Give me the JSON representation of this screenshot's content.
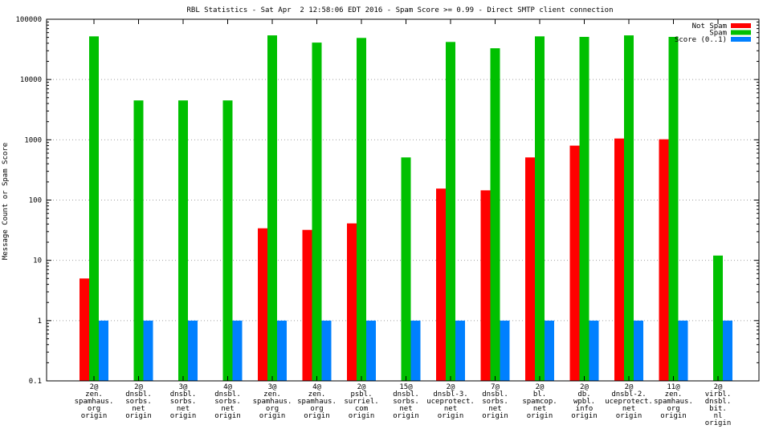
{
  "chart_data": {
    "type": "bar",
    "title": "RBL Statistics - Sat Apr  2 12:58:06 EDT 2016 - Spam Score >= 0.99 - Direct SMTP client connection",
    "ylabel": "Message Count or Spam Score",
    "xlabel": "",
    "yscale": "log",
    "ylim": [
      0.1,
      100000
    ],
    "yticks": [
      "0.1",
      "1",
      "10",
      "100",
      "1000",
      "10000",
      "100000"
    ],
    "grid": true,
    "legend_position": "top-right",
    "categories": [
      [
        "2@",
        "zen.",
        "spamhaus.",
        "org",
        "origin"
      ],
      [
        "2@",
        "dnsbl.",
        "sorbs.",
        "net",
        "origin"
      ],
      [
        "3@",
        "dnsbl.",
        "sorbs.",
        "net",
        "origin"
      ],
      [
        "4@",
        "dnsbl.",
        "sorbs.",
        "net",
        "origin"
      ],
      [
        "3@",
        "zen.",
        "spamhaus.",
        "org",
        "origin"
      ],
      [
        "4@",
        "zen.",
        "spamhaus.",
        "org",
        "origin"
      ],
      [
        "2@",
        "psbl.",
        "surriel.",
        "com",
        "origin"
      ],
      [
        "15@",
        "dnsbl.",
        "sorbs.",
        "net",
        "origin"
      ],
      [
        "2@",
        "dnsbl-3.",
        "uceprotect.",
        "net",
        "origin"
      ],
      [
        "7@",
        "dnsbl.",
        "sorbs.",
        "net",
        "origin"
      ],
      [
        "2@",
        "bl.",
        "spamcop.",
        "net",
        "origin"
      ],
      [
        "2@",
        "db.",
        "wpbl.",
        "info",
        "origin"
      ],
      [
        "2@",
        "dnsbl-2.",
        "uceprotect.",
        "net",
        "origin"
      ],
      [
        "11@",
        "zen.",
        "spamhaus.",
        "org",
        "origin"
      ],
      [
        "2@",
        "virbl.",
        "dnsbl.",
        "bit.",
        "nl",
        "origin"
      ]
    ],
    "series": [
      {
        "name": "Not Spam",
        "color": "#ff0000",
        "values": [
          5,
          null,
          null,
          null,
          34,
          32,
          41,
          null,
          155,
          145,
          510,
          800,
          1050,
          1020,
          null
        ]
      },
      {
        "name": "Spam",
        "color": "#00c000",
        "values": [
          52000,
          4500,
          4500,
          4500,
          54000,
          41000,
          49000,
          510,
          42000,
          33000,
          52000,
          51000,
          54000,
          51000,
          12
        ]
      },
      {
        "name": "Score (0..1)",
        "color": "#0080ff",
        "values": [
          1,
          1,
          1,
          1,
          1,
          1,
          1,
          1,
          1,
          1,
          1,
          1,
          1,
          1,
          1
        ]
      }
    ]
  }
}
